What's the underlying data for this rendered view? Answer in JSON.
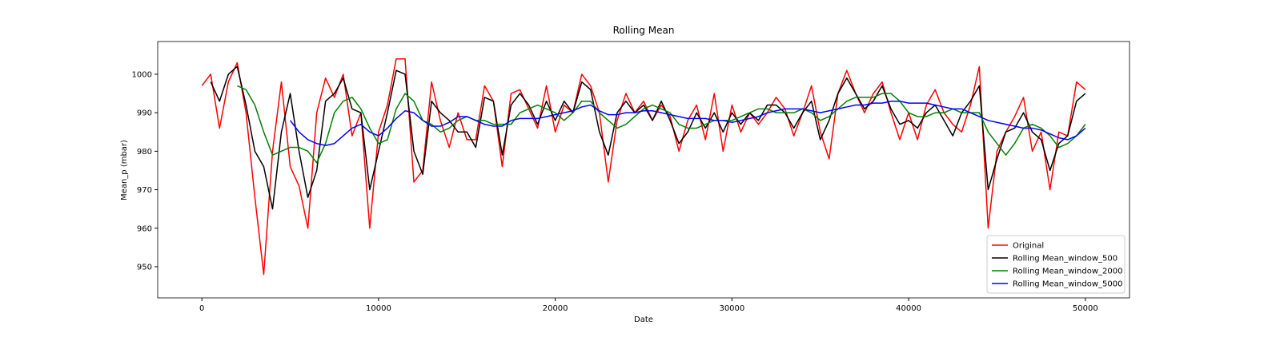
{
  "chart_data": {
    "type": "line",
    "title": "Rolling Mean",
    "x_label": "Date",
    "y_label": "Mean_p (mbar)",
    "x": [
      0,
      500,
      1000,
      1500,
      2000,
      2500,
      3000,
      3500,
      4000,
      4500,
      5000,
      5500,
      6000,
      6500,
      7000,
      7500,
      8000,
      8500,
      9000,
      9500,
      10000,
      10500,
      11000,
      11500,
      12000,
      12500,
      13000,
      13500,
      14000,
      14500,
      15000,
      15500,
      16000,
      16500,
      17000,
      17500,
      18000,
      18500,
      19000,
      19500,
      20000,
      20500,
      21000,
      21500,
      22000,
      22500,
      23000,
      23500,
      24000,
      24500,
      25000,
      25500,
      26000,
      26500,
      27000,
      27500,
      28000,
      28500,
      29000,
      29500,
      30000,
      30500,
      31000,
      31500,
      32000,
      32500,
      33000,
      33500,
      34000,
      34500,
      35000,
      35500,
      36000,
      36500,
      37000,
      37500,
      38000,
      38500,
      39000,
      39500,
      40000,
      40500,
      41000,
      41500,
      42000,
      42500,
      43000,
      43500,
      44000,
      44500,
      45000,
      45500,
      46000,
      46500,
      47000,
      47500,
      48000,
      48500,
      49000,
      49500,
      50000
    ],
    "series": [
      {
        "name": "Original",
        "color": "#ff0000",
        "values": [
          997,
          1000,
          986,
          998,
          1003,
          990,
          968,
          948,
          980,
          998,
          976,
          971,
          960,
          990,
          999,
          994,
          1000,
          984,
          990,
          960,
          985,
          992,
          1004,
          1004,
          972,
          975,
          998,
          988,
          981,
          990,
          983,
          983,
          997,
          993,
          976,
          995,
          996,
          991,
          986,
          997,
          985,
          992,
          990,
          1000,
          997,
          990,
          972,
          988,
          995,
          990,
          993,
          988,
          992,
          989,
          980,
          988,
          992,
          983,
          995,
          980,
          992,
          985,
          990,
          987,
          990,
          994,
          991,
          984,
          990,
          997,
          985,
          978,
          995,
          1001,
          995,
          990,
          995,
          998,
          990,
          983,
          990,
          983,
          992,
          996,
          990,
          987,
          985,
          992,
          1002,
          960,
          980,
          985,
          989,
          994,
          980,
          985,
          970,
          985,
          984,
          998,
          996
        ]
      },
      {
        "name": "Rolling Mean_window_500",
        "color": "#000000",
        "values": [
          null,
          998,
          993,
          1000,
          1002,
          992,
          980,
          976,
          965,
          985,
          995,
          980,
          968,
          975,
          993,
          995,
          999,
          991,
          990,
          970,
          980,
          990,
          1001,
          1000,
          980,
          974,
          993,
          990,
          988,
          985,
          985,
          981,
          994,
          993,
          979,
          992,
          995,
          992,
          987,
          993,
          988,
          993,
          990,
          998,
          996,
          985,
          979,
          990,
          993,
          990,
          992,
          988,
          993,
          988,
          982,
          985,
          990,
          986,
          990,
          985,
          990,
          987,
          990,
          988,
          992,
          992,
          990,
          986,
          990,
          993,
          983,
          988,
          995,
          999,
          995,
          991,
          993,
          997,
          991,
          987,
          988,
          986,
          990,
          992,
          988,
          984,
          990,
          993,
          997,
          970,
          978,
          985,
          986,
          990,
          985,
          983,
          975,
          982,
          984,
          993,
          995
        ]
      },
      {
        "name": "Rolling Mean_window_2000",
        "color": "#008000",
        "values": [
          null,
          null,
          null,
          null,
          997,
          996,
          992,
          985,
          979,
          980,
          981,
          981,
          980,
          977,
          982,
          990,
          993,
          994,
          991,
          986,
          982,
          983,
          991,
          995,
          993,
          988,
          987,
          985,
          986,
          988,
          989,
          988,
          988,
          987,
          987,
          987,
          990,
          991,
          992,
          991,
          990,
          988,
          990,
          993,
          993,
          990,
          988,
          986,
          987,
          989,
          991,
          992,
          991,
          990,
          987,
          986,
          986,
          987,
          988,
          988,
          988,
          989,
          990,
          991,
          991,
          990,
          990,
          990,
          991,
          990,
          988,
          989,
          991,
          993,
          994,
          994,
          994,
          995,
          995,
          993,
          990,
          989,
          989,
          990,
          990,
          991,
          990,
          990,
          990,
          985,
          982,
          979,
          982,
          986,
          987,
          986,
          984,
          981,
          982,
          984,
          987
        ]
      },
      {
        "name": "Rolling Mean_window_5000",
        "color": "#0000ff",
        "values": [
          null,
          null,
          null,
          null,
          null,
          null,
          null,
          null,
          null,
          null,
          988,
          985,
          983,
          982,
          981.5,
          982,
          984,
          986,
          987,
          985,
          984,
          986,
          988.5,
          990.5,
          990,
          988,
          986.5,
          986.5,
          987.5,
          989,
          989,
          988,
          987,
          986.5,
          986.5,
          988,
          988.5,
          988.5,
          988.5,
          989,
          989.5,
          990,
          990.5,
          991.5,
          992,
          990.5,
          989.5,
          989.5,
          990,
          990,
          990.5,
          990.5,
          990,
          989.5,
          989,
          988.5,
          988.5,
          988.5,
          988,
          988,
          987.5,
          988,
          988.5,
          989,
          990,
          990.5,
          991,
          991,
          991,
          990.5,
          990,
          990.5,
          991,
          991.5,
          992,
          992,
          992.5,
          992.5,
          993,
          993,
          992.5,
          992.5,
          992.5,
          992,
          991.5,
          991,
          991,
          990,
          989,
          988,
          987.5,
          987,
          986.5,
          986,
          986,
          985.5,
          984.5,
          983.5,
          983,
          984,
          986
        ]
      }
    ],
    "xlim": [
      -2500,
      52500
    ],
    "ylim": [
      941.9,
      1008.5
    ],
    "xticks": [
      0,
      10000,
      20000,
      30000,
      40000,
      50000
    ],
    "yticks": [
      950,
      960,
      970,
      980,
      990,
      1000
    ],
    "grid": false,
    "legend": "lower right"
  }
}
